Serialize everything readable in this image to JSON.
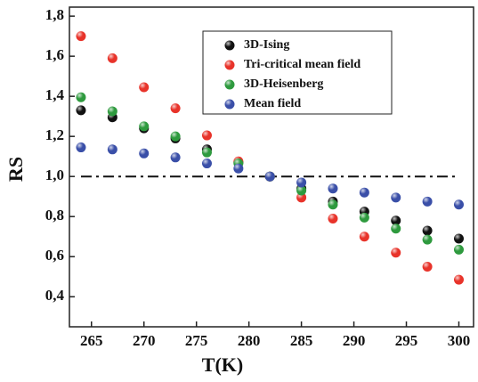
{
  "chart_data": {
    "type": "scatter",
    "x_label": "T(K)",
    "y_label": "RS",
    "x": [
      264,
      267,
      270,
      273,
      276,
      279,
      282,
      285,
      288,
      291,
      294,
      297,
      300
    ],
    "series": [
      {
        "name": "3D-Ising",
        "color": "#111111",
        "values": [
          1.33,
          1.295,
          1.24,
          1.19,
          1.135,
          1.07,
          1.0,
          0.94,
          0.875,
          0.825,
          0.78,
          0.73,
          0.69
        ]
      },
      {
        "name": "Tri-critical mean field",
        "color": "#e8332a",
        "values": [
          1.7,
          1.59,
          1.445,
          1.34,
          1.205,
          1.075,
          1.0,
          0.895,
          0.79,
          0.7,
          0.62,
          0.55,
          0.485
        ]
      },
      {
        "name": "3D-Heisenberg",
        "color": "#2e9a3e",
        "values": [
          1.395,
          1.325,
          1.25,
          1.2,
          1.12,
          1.065,
          1.0,
          0.93,
          0.86,
          0.795,
          0.74,
          0.685,
          0.635
        ]
      },
      {
        "name": "Mean field",
        "color": "#3a4fa8",
        "values": [
          1.145,
          1.135,
          1.115,
          1.095,
          1.065,
          1.04,
          1.0,
          0.97,
          0.94,
          0.92,
          0.895,
          0.875,
          0.86
        ]
      }
    ],
    "reference_line": 1.0,
    "xlim": [
      262.9,
      301.4
    ],
    "ylim": [
      0.25,
      1.845
    ],
    "xticks": [
      265,
      270,
      275,
      280,
      285,
      290,
      295,
      300
    ],
    "yticks": [
      {
        "value": 0.4,
        "label": "0,4"
      },
      {
        "value": 0.6,
        "label": "0,6"
      },
      {
        "value": 0.8,
        "label": "0,8"
      },
      {
        "value": 1.0,
        "label": "1,0"
      },
      {
        "value": 1.2,
        "label": "1,2"
      },
      {
        "value": 1.4,
        "label": "1,4"
      },
      {
        "value": 1.6,
        "label": "1,6"
      },
      {
        "value": 1.8,
        "label": "1,8"
      }
    ]
  }
}
